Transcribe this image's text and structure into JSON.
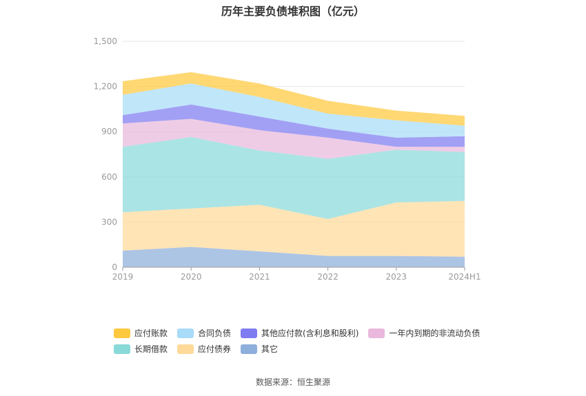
{
  "chart_data": {
    "type": "area",
    "stacked": true,
    "title": "历年主要负债堆积图（亿元）",
    "x": [
      "2019",
      "2020",
      "2021",
      "2022",
      "2023",
      "2024H1"
    ],
    "ylim": [
      0,
      1500
    ],
    "yticks": [
      "0",
      "300",
      "600",
      "900",
      "1,200",
      "1,500"
    ],
    "ytick_values": [
      0,
      300,
      600,
      900,
      1200,
      1500
    ],
    "grid": true,
    "legend_position": "bottom",
    "series": [
      {
        "name": "其它",
        "color": "#8eaedb",
        "values": [
          110,
          135,
          105,
          75,
          75,
          70
        ]
      },
      {
        "name": "应付债券",
        "color": "#ffd99a",
        "values": [
          255,
          255,
          310,
          245,
          355,
          370
        ]
      },
      {
        "name": "长期借款",
        "color": "#8ad9d9",
        "values": [
          435,
          475,
          360,
          400,
          350,
          325
        ]
      },
      {
        "name": "一年内到期的非流动负债",
        "color": "#e9b8dc",
        "values": [
          155,
          120,
          135,
          140,
          20,
          35
        ]
      },
      {
        "name": "其他应付款(含利息和股利)",
        "color": "#7e7cf0",
        "values": [
          55,
          95,
          90,
          60,
          60,
          70
        ]
      },
      {
        "name": "合同负债",
        "color": "#a8dcf8",
        "values": [
          135,
          140,
          130,
          100,
          115,
          70
        ]
      },
      {
        "name": "应付账款",
        "color": "#ffc93e",
        "values": [
          90,
          75,
          90,
          85,
          65,
          65
        ]
      }
    ]
  },
  "legend": {
    "row1": [
      {
        "name": "应付账款",
        "color": "#ffc93e"
      },
      {
        "name": "合同负债",
        "color": "#a8dcf8"
      },
      {
        "name": "其他应付款(含利息和股利)",
        "color": "#7e7cf0"
      },
      {
        "name": "一年内到期的非流动负债",
        "color": "#e9b8dc"
      }
    ],
    "row2": [
      {
        "name": "长期借款",
        "color": "#8ad9d9"
      },
      {
        "name": "应付债券",
        "color": "#ffd99a"
      },
      {
        "name": "其它",
        "color": "#8eaedb"
      }
    ]
  },
  "source": "数据来源：恒生聚源"
}
